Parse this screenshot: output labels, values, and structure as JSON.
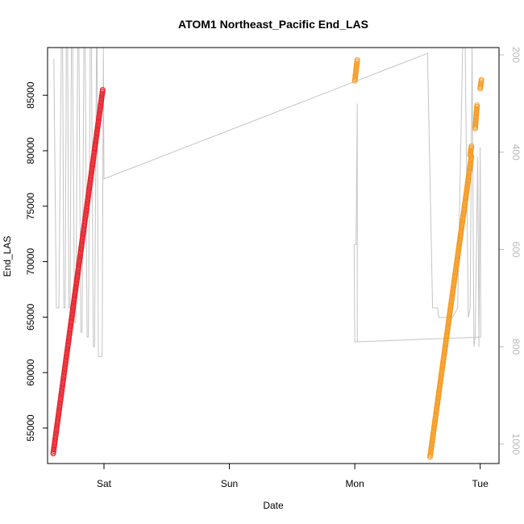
{
  "chart_data": {
    "type": "scatter",
    "title": "ATOM1 Northeast_Pacific End_LAS",
    "xlabel": "Date",
    "ylabel": "End_LAS",
    "x_ticks": [
      {
        "label": "Sat",
        "day": 1
      },
      {
        "label": "Sun",
        "day": 2
      },
      {
        "label": "Mon",
        "day": 3
      },
      {
        "label": "Tue",
        "day": 4
      }
    ],
    "xlim": [
      0.55,
      4.15
    ],
    "ylim": [
      51800,
      89300
    ],
    "y_ticks": [
      55000,
      60000,
      65000,
      70000,
      75000,
      80000,
      85000
    ],
    "y2_ticks": [
      200,
      400,
      600,
      800,
      1000
    ],
    "y2lim": [
      1040,
      185
    ],
    "colors": {
      "red_series": "#e8202a",
      "orange_series": "#f5991e",
      "gray_line": "#c4c4c4"
    },
    "series": [
      {
        "color_key": "red_series",
        "marker": "circle-open",
        "segments": [
          {
            "x_start": 0.595,
            "y_start": 52700,
            "x_end": 0.99,
            "y_end": 85500
          }
        ]
      },
      {
        "color_key": "orange_series",
        "marker": "circle-open",
        "segments": [
          {
            "x_start": 3.0,
            "y_start": 86300,
            "x_end": 3.02,
            "y_end": 88200
          },
          {
            "x_start": 3.6,
            "y_start": 52400,
            "x_end": 3.93,
            "y_end": 79500
          },
          {
            "x_start": 3.92,
            "y_start": 79600,
            "x_end": 3.93,
            "y_end": 80400
          },
          {
            "x_start": 3.96,
            "y_start": 82000,
            "x_end": 3.975,
            "y_end": 84100
          },
          {
            "x_start": 4.0,
            "y_start": 85600,
            "x_end": 4.01,
            "y_end": 86400
          }
        ]
      }
    ],
    "secondary_line": {
      "axis": "right",
      "color_key": "gray_line",
      "points": [
        [
          0.6,
          208
        ],
        [
          0.62,
          720
        ],
        [
          0.64,
          720
        ],
        [
          0.66,
          185
        ],
        [
          0.67,
          185
        ],
        [
          0.68,
          720
        ],
        [
          0.69,
          720
        ],
        [
          0.7,
          185
        ],
        [
          0.71,
          185
        ],
        [
          0.72,
          720
        ],
        [
          0.73,
          720
        ],
        [
          0.74,
          185
        ],
        [
          0.75,
          185
        ],
        [
          0.765,
          750
        ],
        [
          0.775,
          750
        ],
        [
          0.79,
          185
        ],
        [
          0.8,
          185
        ],
        [
          0.815,
          770
        ],
        [
          0.825,
          770
        ],
        [
          0.84,
          185
        ],
        [
          0.85,
          185
        ],
        [
          0.865,
          780
        ],
        [
          0.875,
          780
        ],
        [
          0.89,
          185
        ],
        [
          0.9,
          185
        ],
        [
          0.915,
          800
        ],
        [
          0.925,
          800
        ],
        [
          0.94,
          185
        ],
        [
          0.945,
          185
        ],
        [
          0.955,
          820
        ],
        [
          0.985,
          820
        ],
        [
          0.995,
          185
        ],
        [
          1.0,
          455
        ],
        [
          3.58,
          197
        ],
        [
          3.62,
          720
        ],
        [
          3.66,
          720
        ],
        [
          3.67,
          740
        ],
        [
          3.78,
          740
        ],
        [
          3.82,
          720
        ],
        [
          3.86,
          175
        ],
        [
          3.88,
          185
        ],
        [
          3.905,
          740
        ],
        [
          3.92,
          720
        ],
        [
          3.935,
          185
        ],
        [
          3.95,
          800
        ],
        [
          3.96,
          780
        ],
        [
          3.98,
          410
        ],
        [
          3.99,
          800
        ],
        [
          4.0,
          390
        ],
        [
          4.005,
          780
        ],
        [
          3.0,
          790
        ],
        [
          2.995,
          590
        ],
        [
          3.01,
          590
        ],
        [
          3.02,
          300
        ],
        [
          3.02,
          790
        ]
      ]
    }
  }
}
